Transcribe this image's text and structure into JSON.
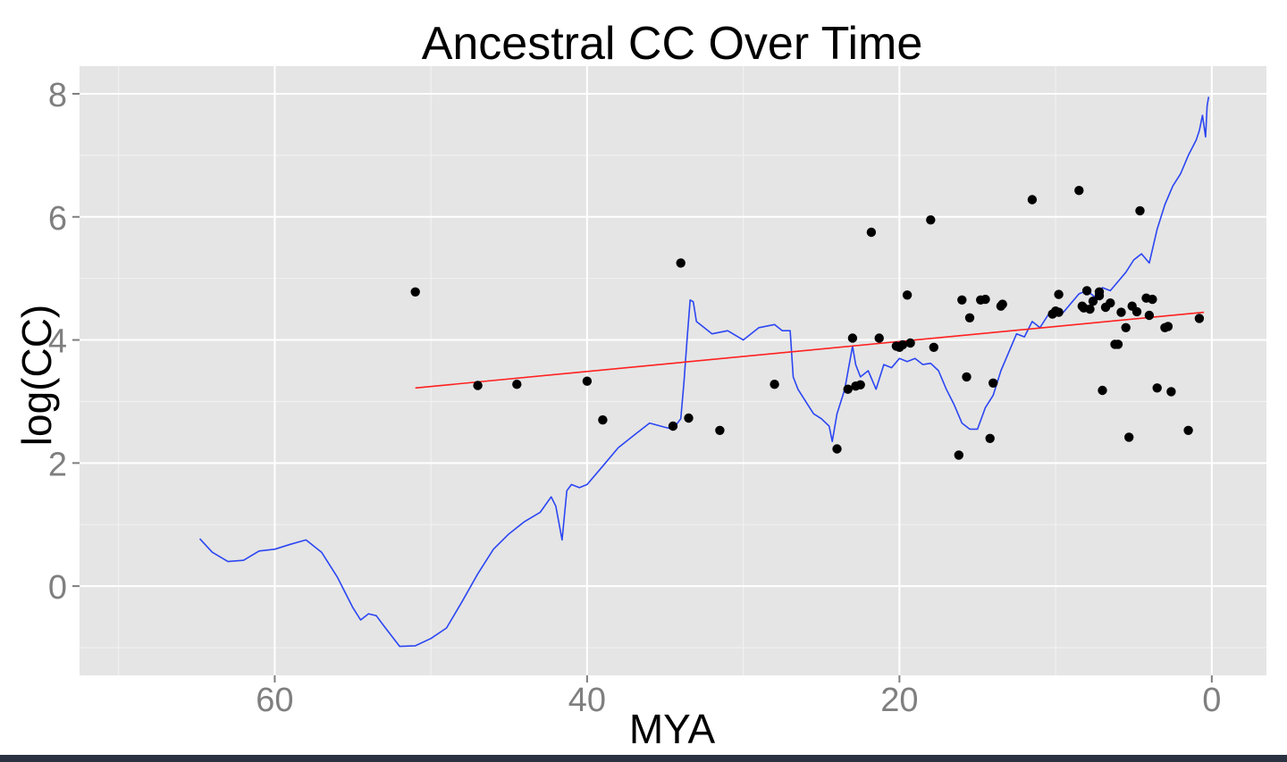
{
  "chart_data": {
    "type": "line",
    "title": "Ancestral CC Over Time",
    "xlabel": "MYA",
    "ylabel": "log(CC)",
    "x_reversed": true,
    "xlim": [
      72.5,
      -3.5
    ],
    "ylim": [
      -1.45,
      8.45
    ],
    "x_ticks": [
      60,
      40,
      20,
      0
    ],
    "x_tick_labels": [
      "60",
      "40",
      "20",
      "0"
    ],
    "y_ticks": [
      0,
      2,
      4,
      6,
      8
    ],
    "y_tick_labels": [
      "0",
      "2",
      "4",
      "6",
      "8"
    ],
    "grid": true,
    "legend": "none",
    "colors": {
      "panel": "#e5e5e5",
      "grid_major": "#ffffff",
      "ancestral_line": "#2b46f2",
      "trend_line": "#ff2020",
      "points": "#000000",
      "tick_label": "#7f7f7f"
    },
    "series": [
      {
        "kind": "line",
        "x": [
          64.8,
          64.0,
          63.0,
          62.0,
          61.0,
          60.0,
          59.0,
          58.0,
          57.0,
          56.0,
          55.0,
          54.5,
          54.0,
          53.5,
          53.0,
          52.0,
          51.0,
          50.0,
          49.0,
          48.0,
          47.0,
          46.0,
          45.0,
          44.0,
          43.0,
          42.3,
          42.0,
          41.6,
          41.3,
          41.0,
          40.5,
          40.0,
          39.0,
          38.0,
          37.0,
          36.0,
          35.0,
          34.5,
          34.0,
          33.8,
          33.6,
          33.4,
          33.2,
          33.0,
          32.5,
          32.0,
          31.0,
          30.0,
          29.0,
          28.0,
          27.5,
          27.0,
          26.8,
          26.5,
          26.0,
          25.5,
          25.0,
          24.5,
          24.3,
          24.0,
          23.5,
          23.0,
          22.8,
          22.5,
          22.0,
          21.5,
          21.0,
          20.5,
          20.0,
          19.5,
          19.0,
          18.5,
          18.0,
          17.5,
          17.0,
          16.5,
          16.0,
          15.5,
          15.0,
          14.5,
          14.0,
          13.5,
          13.0,
          12.5,
          12.0,
          11.5,
          11.0,
          10.5,
          10.0,
          9.5,
          9.0,
          8.5,
          8.0,
          7.5,
          7.0,
          6.5,
          6.0,
          5.5,
          5.0,
          4.5,
          4.0,
          3.5,
          3.0,
          2.5,
          2.0,
          1.5,
          1.0,
          0.8,
          0.6,
          0.4,
          0.3,
          0.2
        ],
        "y": [
          0.77,
          0.55,
          0.4,
          0.42,
          0.57,
          0.6,
          0.68,
          0.75,
          0.55,
          0.15,
          -0.35,
          -0.55,
          -0.45,
          -0.48,
          -0.65,
          -0.98,
          -0.97,
          -0.85,
          -0.68,
          -0.25,
          0.2,
          0.6,
          0.85,
          1.05,
          1.2,
          1.45,
          1.3,
          0.75,
          1.55,
          1.65,
          1.6,
          1.65,
          1.95,
          2.25,
          2.45,
          2.65,
          2.58,
          2.55,
          2.72,
          3.3,
          4.0,
          4.65,
          4.62,
          4.3,
          4.2,
          4.1,
          4.15,
          4.0,
          4.2,
          4.25,
          4.15,
          4.15,
          3.4,
          3.2,
          3.0,
          2.8,
          2.72,
          2.6,
          2.35,
          2.8,
          3.2,
          3.9,
          3.6,
          3.4,
          3.5,
          3.2,
          3.6,
          3.55,
          3.7,
          3.65,
          3.7,
          3.6,
          3.62,
          3.5,
          3.2,
          2.95,
          2.65,
          2.55,
          2.55,
          2.9,
          3.1,
          3.5,
          3.8,
          4.1,
          4.05,
          4.3,
          4.2,
          4.4,
          4.5,
          4.45,
          4.6,
          4.75,
          4.8,
          4.7,
          4.85,
          4.8,
          4.95,
          5.1,
          5.3,
          5.4,
          5.25,
          5.8,
          6.2,
          6.5,
          6.7,
          7.0,
          7.25,
          7.4,
          7.65,
          7.3,
          7.8,
          7.95
        ]
      },
      {
        "kind": "trend",
        "x": [
          51.0,
          0.5
        ],
        "y": [
          3.22,
          4.45
        ]
      },
      {
        "kind": "scatter",
        "x": [
          51.0,
          47.0,
          44.5,
          40.0,
          39.0,
          34.5,
          34.0,
          33.5,
          31.5,
          28.0,
          24.0,
          23.3,
          23.0,
          22.8,
          22.5,
          21.8,
          21.3,
          20.2,
          20.0,
          19.8,
          19.5,
          19.3,
          18.0,
          17.8,
          16.2,
          16.0,
          15.7,
          15.5,
          14.8,
          14.5,
          14.2,
          14.0,
          13.5,
          13.4,
          11.5,
          10.2,
          10.0,
          9.8,
          9.8,
          8.5,
          8.3,
          8.2,
          8.0,
          7.8,
          7.6,
          7.2,
          7.0,
          6.8,
          6.5,
          6.2,
          6.0,
          5.8,
          5.5,
          5.3,
          5.1,
          4.8,
          4.6,
          4.2,
          4.0,
          3.8,
          3.5,
          3.0,
          2.8,
          2.6,
          1.5,
          0.8,
          7.2
        ],
        "y": [
          4.78,
          3.26,
          3.28,
          3.33,
          2.7,
          2.6,
          5.25,
          2.73,
          2.53,
          3.28,
          2.23,
          3.2,
          4.03,
          3.25,
          3.27,
          5.75,
          4.03,
          3.9,
          3.88,
          3.92,
          4.73,
          3.95,
          5.95,
          3.88,
          2.13,
          4.65,
          3.4,
          4.36,
          4.65,
          4.66,
          2.4,
          3.3,
          4.55,
          4.58,
          6.28,
          4.42,
          4.47,
          4.45,
          4.74,
          6.43,
          4.55,
          4.52,
          4.8,
          4.5,
          4.63,
          4.72,
          3.18,
          4.53,
          4.6,
          3.93,
          3.93,
          4.45,
          4.2,
          2.42,
          4.55,
          4.46,
          6.1,
          4.68,
          4.4,
          4.66,
          3.22,
          4.2,
          4.22,
          3.16,
          2.53,
          4.35,
          4.78
        ]
      }
    ]
  }
}
